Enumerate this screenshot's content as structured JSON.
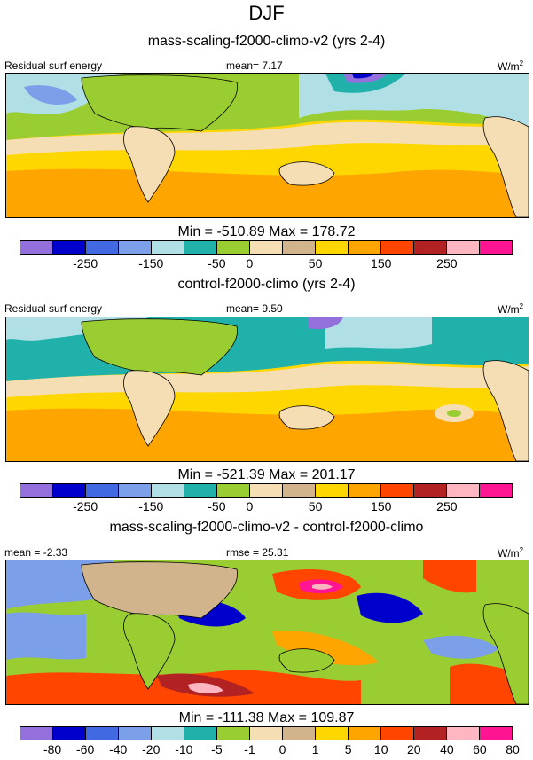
{
  "page": {
    "title": "DJF"
  },
  "colors": [
    "#9370db",
    "#0000cd",
    "#4169e1",
    "#7b9fe8",
    "#b0e0e6",
    "#20b2aa",
    "#9acd32",
    "#f5deb3",
    "#d2b48c",
    "#ffd700",
    "#ffa500",
    "#ff4500",
    "#b22222",
    "#ffb6c1",
    "#ff1493"
  ],
  "chart_data": [
    {
      "type": "heatmap",
      "title": "mass-scaling-f2000-climo-v2 (yrs 2-4)",
      "label_left": "Residual surf energy",
      "label_center": "mean=   7.17",
      "units_base": "W/m",
      "units_exp": "2",
      "stats": "Min = -510.89 Max = 178.72",
      "colorbar_ticks": [
        "-250",
        "-150",
        "-50",
        "0",
        "50",
        "150",
        "250"
      ],
      "tick_positions": [
        2,
        4,
        6,
        7,
        9,
        11,
        13
      ]
    },
    {
      "type": "heatmap",
      "title": "control-f2000-climo (yrs 2-4)",
      "label_left": "Residual surf energy",
      "label_center": "mean=   9.50",
      "units_base": "W/m",
      "units_exp": "2",
      "stats": "Min = -521.39 Max = 201.17",
      "colorbar_ticks": [
        "-250",
        "-150",
        "-50",
        "0",
        "50",
        "150",
        "250"
      ],
      "tick_positions": [
        2,
        4,
        6,
        7,
        9,
        11,
        13
      ]
    },
    {
      "type": "heatmap",
      "title": "mass-scaling-f2000-climo-v2 - control-f2000-climo",
      "label_left": "mean =  -2.33",
      "label_center": "rmse =  25.31",
      "units_base": "W/m",
      "units_exp": "2",
      "stats": "Min = -111.38 Max = 109.87",
      "colorbar_ticks": [
        "-80",
        "-60",
        "-40",
        "-20",
        "-10",
        "-5",
        "-1",
        "0",
        "1",
        "5",
        "10",
        "20",
        "40",
        "60",
        "80"
      ],
      "tick_positions": [
        1,
        2,
        3,
        4,
        5,
        6,
        7,
        8,
        9,
        10,
        11,
        12,
        13,
        14,
        15
      ]
    }
  ]
}
